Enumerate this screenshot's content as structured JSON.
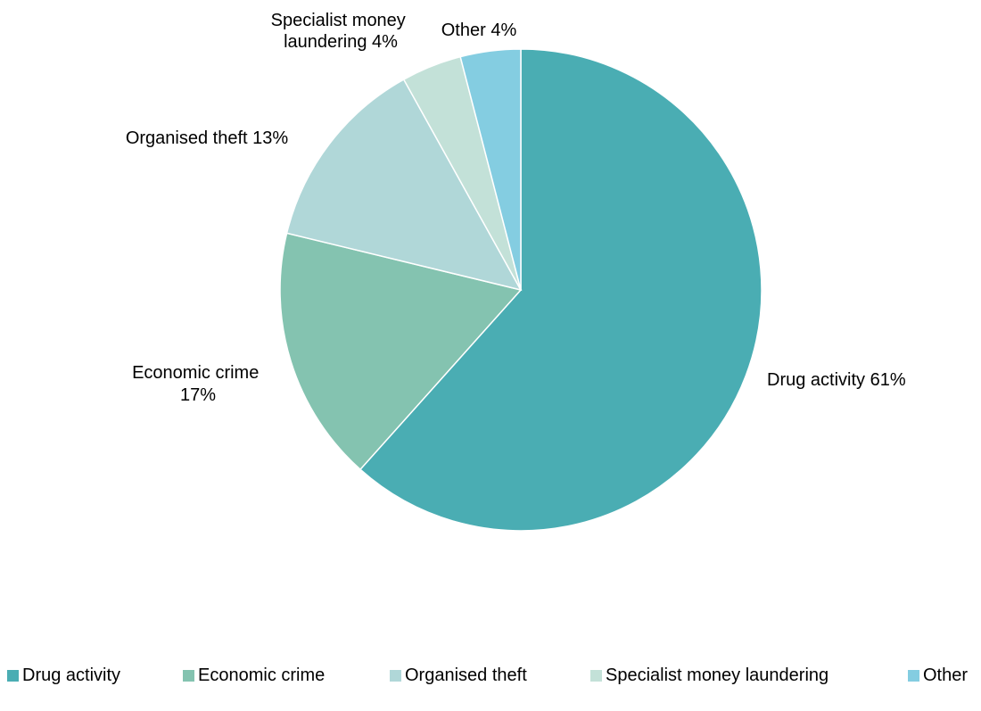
{
  "chart_data": {
    "type": "pie",
    "title": "",
    "start_angle_deg": 0,
    "direction": "clockwise",
    "slices": [
      {
        "name": "Drug activity",
        "value": 61,
        "color": "#4AADB3",
        "label_lines": [
          "Drug activity 61%"
        ]
      },
      {
        "name": "Economic crime",
        "value": 17,
        "color": "#84C3B0",
        "label_lines": [
          "Economic crime",
          "17%"
        ]
      },
      {
        "name": "Organised theft",
        "value": 13,
        "color": "#B0D7D8",
        "label_lines": [
          "Organised theft 13%"
        ]
      },
      {
        "name": "Specialist money laundering",
        "value": 4,
        "color": "#C3E1D8",
        "label_lines": [
          "Specialist money",
          "laundering 4%"
        ]
      },
      {
        "name": "Other",
        "value": 4,
        "color": "#84CDE1",
        "label_lines": [
          "Other 4%"
        ]
      }
    ],
    "legend": {
      "position": "bottom",
      "items": [
        "Drug activity",
        "Economic crime",
        "Organised theft",
        "Specialist money laundering",
        "Other"
      ]
    }
  }
}
